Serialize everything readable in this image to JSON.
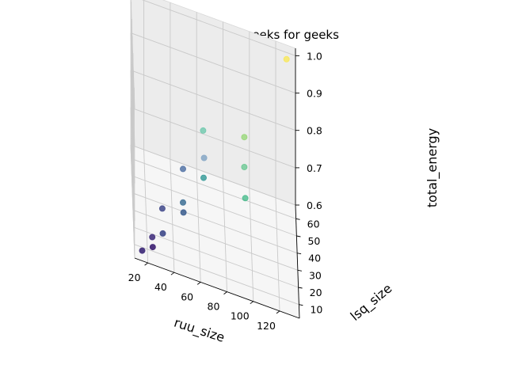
{
  "chart_data": {
    "type": "scatter3d",
    "title": "wireframe geeks for geeks",
    "xlabel": "ruu_size",
    "ylabel": "lsq_size",
    "zlabel": "total_energy",
    "x_ticks": [
      "20",
      "40",
      "60",
      "80",
      "100",
      "120"
    ],
    "y_ticks": [
      "10",
      "20",
      "30",
      "40",
      "50",
      "60"
    ],
    "z_ticks": [
      "0.6",
      "0.7",
      "0.8",
      "0.9",
      "1.0"
    ],
    "xlim": [
      10,
      135
    ],
    "ylim": [
      2,
      68
    ],
    "zlim": [
      0.6,
      1.02
    ],
    "grid": true,
    "colormap": "viridis",
    "points": [
      {
        "x": 16,
        "y": 8,
        "z": 0.6,
        "color": "#46337e"
      },
      {
        "x": 24,
        "y": 8,
        "z": 0.62,
        "color": "#472c7a"
      },
      {
        "x": 24,
        "y": 16,
        "z": 0.61,
        "color": "#463480"
      },
      {
        "x": 32,
        "y": 16,
        "z": 0.63,
        "color": "#3e4989"
      },
      {
        "x": 32,
        "y": 24,
        "z": 0.66,
        "color": "#3f4889"
      },
      {
        "x": 48,
        "y": 24,
        "z": 0.67,
        "color": "#375b8d"
      },
      {
        "x": 48,
        "y": 32,
        "z": 0.66,
        "color": "#31668e"
      },
      {
        "x": 48,
        "y": 32,
        "z": 0.75,
        "color": "#4b6da1"
      },
      {
        "x": 64,
        "y": 32,
        "z": 0.8,
        "color": "#7fa3c3"
      },
      {
        "x": 64,
        "y": 40,
        "z": 0.71,
        "color": "#21908d"
      },
      {
        "x": 64,
        "y": 48,
        "z": 0.8,
        "color": "#5cc3a3"
      },
      {
        "x": 96,
        "y": 48,
        "z": 0.66,
        "color": "#2fb47c"
      },
      {
        "x": 96,
        "y": 64,
        "z": 0.67,
        "color": "#3dbc74"
      },
      {
        "x": 96,
        "y": 64,
        "z": 0.75,
        "color": "#7ad151"
      },
      {
        "x": 128,
        "y": 64,
        "z": 1.0,
        "color": "#fde725"
      }
    ]
  }
}
